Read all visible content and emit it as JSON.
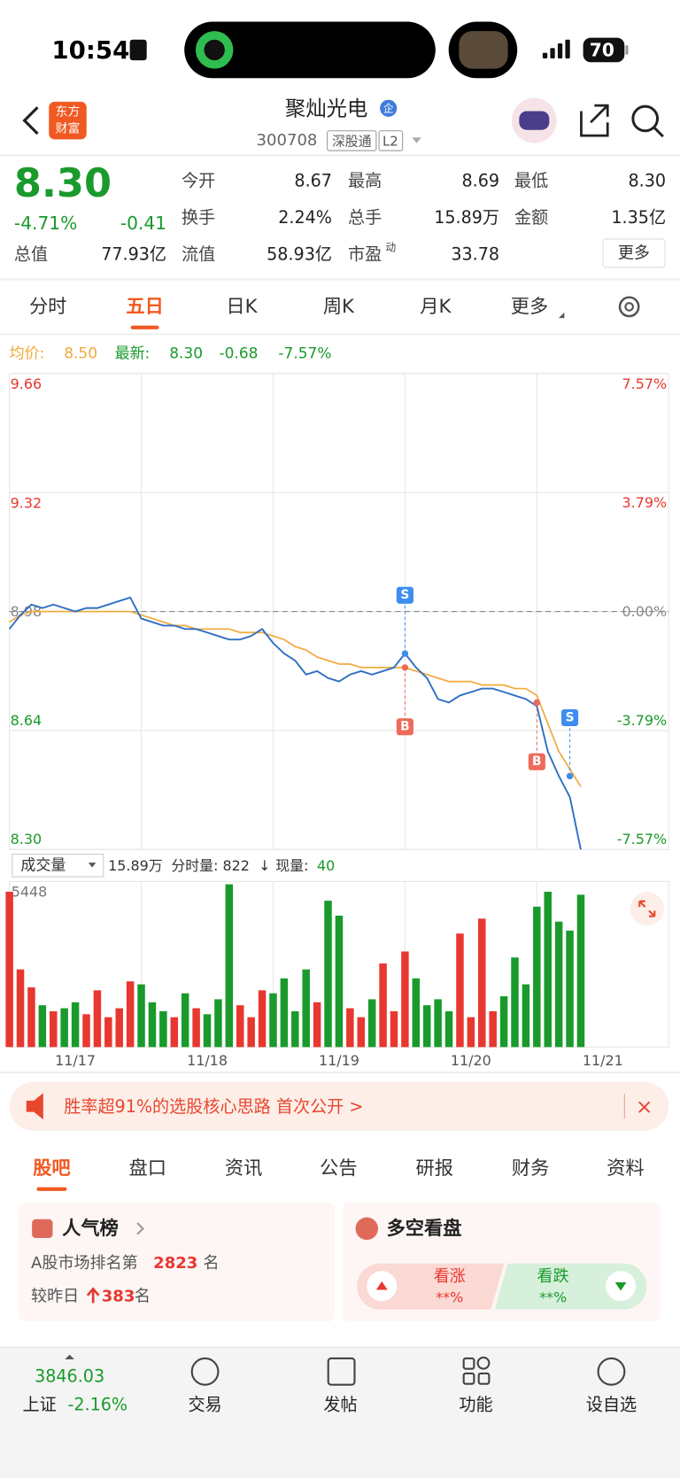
{
  "status_bar": {
    "time": "10:54",
    "battery": "70"
  },
  "header": {
    "logo": [
      "东方",
      "财富"
    ],
    "name": "聚灿光电",
    "badge": "企",
    "code": "300708",
    "tags": [
      "深股通",
      "L2"
    ]
  },
  "quote": {
    "price": "8.30",
    "change_pct": "-4.71%",
    "change": "-0.41",
    "stats": [
      {
        "label": "今开",
        "value": "8.67"
      },
      {
        "label": "最高",
        "value": "8.69"
      },
      {
        "label": "最低",
        "value": "8.30"
      },
      {
        "label": "换手",
        "value": "2.24%"
      },
      {
        "label": "总手",
        "value": "15.89万"
      },
      {
        "label": "金额",
        "value": "1.35亿"
      },
      {
        "label": "总值",
        "value": "77.93亿"
      },
      {
        "label": "流值",
        "value": "58.93亿"
      },
      {
        "label": "市盈",
        "sup": "动",
        "value": "33.78"
      }
    ],
    "more": "更多"
  },
  "period_tabs": {
    "items": [
      "分时",
      "五日",
      "日K",
      "周K",
      "月K",
      "更多"
    ],
    "active": 1
  },
  "legend": {
    "avg_label": "均价:",
    "avg": "8.50",
    "latest_label": "最新:",
    "latest": "8.30",
    "change": "-0.68",
    "change_pct": "-7.57%"
  },
  "chart_data": {
    "type": "line",
    "x": [
      0,
      1,
      2,
      3,
      4,
      5,
      6,
      7,
      8,
      9,
      10,
      11,
      12,
      13,
      14,
      15,
      16,
      17,
      18,
      19,
      20,
      21,
      22,
      23,
      24,
      25,
      26,
      27,
      28,
      29,
      30,
      31,
      32,
      33,
      34,
      35,
      36,
      37,
      38,
      39,
      40,
      41,
      42,
      43,
      44,
      45,
      46,
      47,
      48,
      49,
      50,
      51,
      52
    ],
    "xlim": [
      0,
      60
    ],
    "categories": [
      "11/17",
      "11/18",
      "11/19",
      "11/20",
      "11/21"
    ],
    "ylim": [
      8.3,
      9.66
    ],
    "yticks": [
      {
        "value": 8.3,
        "label": "8.30"
      },
      8.64,
      8.98,
      9.32,
      9.66
    ],
    "y2lim": [
      -7.57,
      7.57
    ],
    "y2ticks": [
      {
        "value": -7.57,
        "label": "-7.57%"
      },
      {
        "value": -3.79,
        "label": "-3.79%"
      },
      {
        "value": 0,
        "label": "0.00%"
      },
      {
        "value": 3.79,
        "label": "3.79%"
      },
      {
        "value": 7.57,
        "label": "7.57%"
      }
    ],
    "series": [
      {
        "color": "#2f6fc4",
        "values": [
          8.93,
          8.97,
          9.0,
          8.99,
          9.0,
          8.99,
          8.98,
          8.99,
          8.99,
          9.0,
          9.01,
          9.02,
          8.96,
          8.95,
          8.94,
          8.94,
          8.93,
          8.93,
          8.92,
          8.91,
          8.9,
          8.9,
          8.91,
          8.93,
          8.89,
          8.86,
          8.84,
          8.8,
          8.81,
          8.79,
          8.78,
          8.8,
          8.81,
          8.8,
          8.81,
          8.82,
          8.86,
          8.82,
          8.79,
          8.73,
          8.72,
          8.74,
          8.75,
          8.76,
          8.76,
          8.75,
          8.74,
          8.73,
          8.71,
          8.58,
          8.51,
          8.45,
          8.3
        ]
      },
      {
        "color": "#f2a93b",
        "values": [
          8.95,
          8.97,
          8.98,
          8.98,
          8.98,
          8.98,
          8.98,
          8.98,
          8.98,
          8.98,
          8.98,
          8.98,
          8.97,
          8.96,
          8.95,
          8.94,
          8.94,
          8.93,
          8.93,
          8.93,
          8.93,
          8.92,
          8.92,
          8.92,
          8.91,
          8.9,
          8.88,
          8.87,
          8.85,
          8.84,
          8.83,
          8.83,
          8.82,
          8.82,
          8.82,
          8.82,
          8.82,
          8.81,
          8.8,
          8.79,
          8.78,
          8.78,
          8.78,
          8.77,
          8.77,
          8.77,
          8.76,
          8.76,
          8.74,
          8.66,
          8.58,
          8.53,
          8.48
        ]
      }
    ],
    "markers": [
      {
        "label": "S",
        "x": 36,
        "price": 8.86
      },
      {
        "label": "B",
        "x": 36,
        "price": 8.82
      },
      {
        "label": "B",
        "x": 48,
        "price": 8.72
      },
      {
        "label": "S",
        "x": 51,
        "price": 8.51
      }
    ]
  },
  "volume": {
    "selector": "成交量",
    "total": "15.89万",
    "tick_volume": "分时量: 822",
    "arrow": "↓",
    "current_label": "现量:",
    "current": "40",
    "ylim": [
      0,
      5448
    ],
    "yticks": [
      5448
    ],
    "values": [
      5200,
      2600,
      2000,
      1400,
      1200,
      1300,
      1500,
      1100,
      1900,
      1000,
      1300,
      2200,
      2100,
      1500,
      1200,
      1000,
      1800,
      1300,
      1100,
      1600,
      5448,
      1400,
      1000,
      1900,
      1800,
      2300,
      1200,
      2600,
      1500,
      4900,
      4400,
      1300,
      1000,
      1600,
      2800,
      1200,
      3200,
      2300,
      1400,
      1600,
      1200,
      3800,
      1000,
      4300,
      1200,
      1700,
      3000,
      2100,
      4700,
      5200,
      4200,
      3900,
      5100
    ]
  },
  "banner": {
    "text": "胜率超91%的选股核心思路 首次公开 >",
    "close": "×"
  },
  "section_tabs": {
    "items": [
      "股吧",
      "盘口",
      "资讯",
      "公告",
      "研报",
      "财务",
      "资料"
    ],
    "active": 0
  },
  "popularity": {
    "title": "人气榜",
    "rank_prefix": "A股市场排名第",
    "rank": "2823",
    "rank_suffix": "名",
    "change_prefix": "较昨日",
    "change": "383",
    "change_suffix": "名"
  },
  "bull_bear": {
    "title": "多空看盘",
    "bull": "看涨",
    "bull_value": "**%",
    "bear": "看跌",
    "bear_value": "**%"
  },
  "bottom_nav": {
    "index_value": "3846.03",
    "index_name": "上证",
    "index_change": "-2.16%",
    "items": [
      "交易",
      "发帖",
      "功能",
      "设自选"
    ]
  }
}
